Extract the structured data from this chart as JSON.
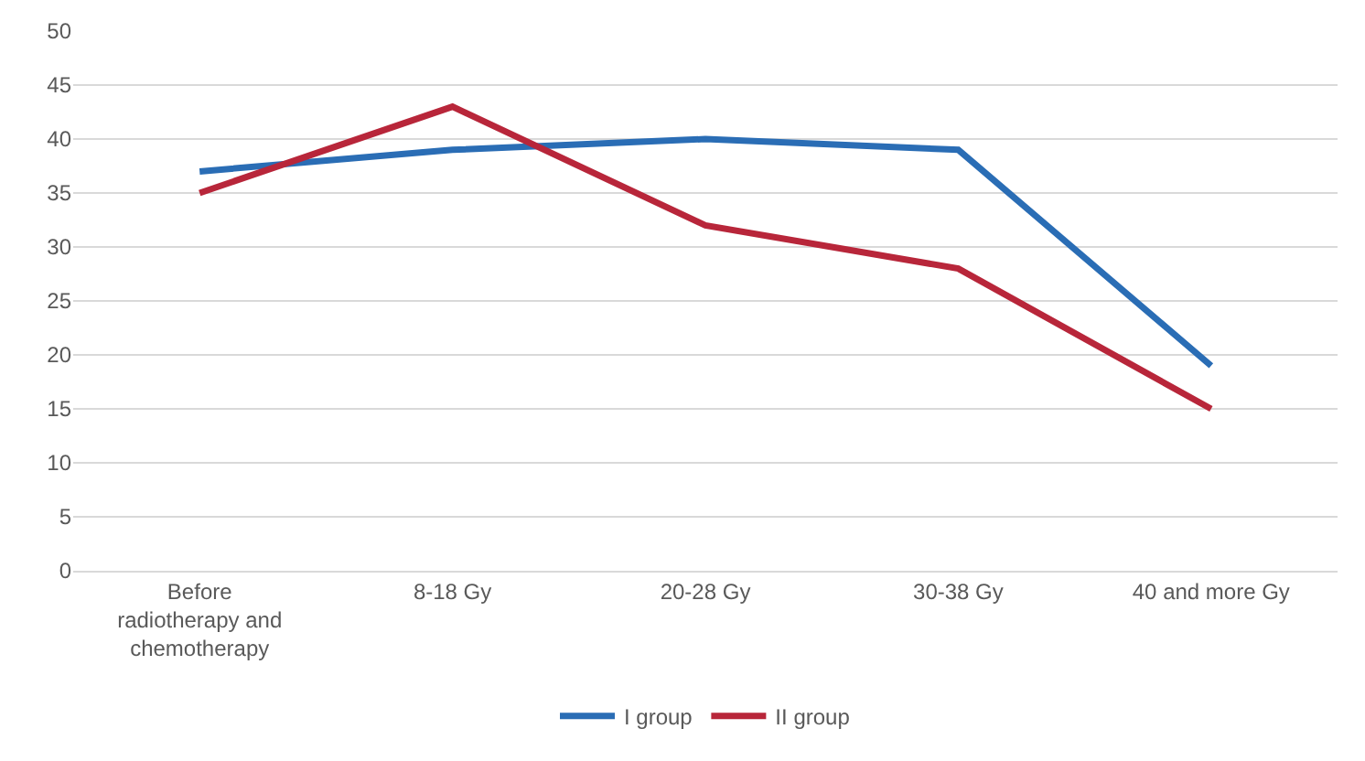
{
  "chart_data": {
    "type": "line",
    "categories": [
      "Before radiotherapy and chemotherapy",
      "8-18 Gy",
      "20-28 Gy",
      "30-38 Gy",
      "40 and more Gy"
    ],
    "series": [
      {
        "name": "I group",
        "color": "#2a6db5",
        "values": [
          37,
          39,
          40,
          39,
          19
        ]
      },
      {
        "name": "II group",
        "color": "#b8263a",
        "values": [
          35,
          43,
          32,
          28,
          15
        ]
      }
    ],
    "ylim": [
      0,
      50
    ],
    "yticks": [
      0,
      5,
      10,
      15,
      20,
      25,
      30,
      35,
      40,
      45,
      50
    ],
    "grid": "y",
    "legend": "bottom",
    "marker": "none",
    "line_style": "solid"
  }
}
